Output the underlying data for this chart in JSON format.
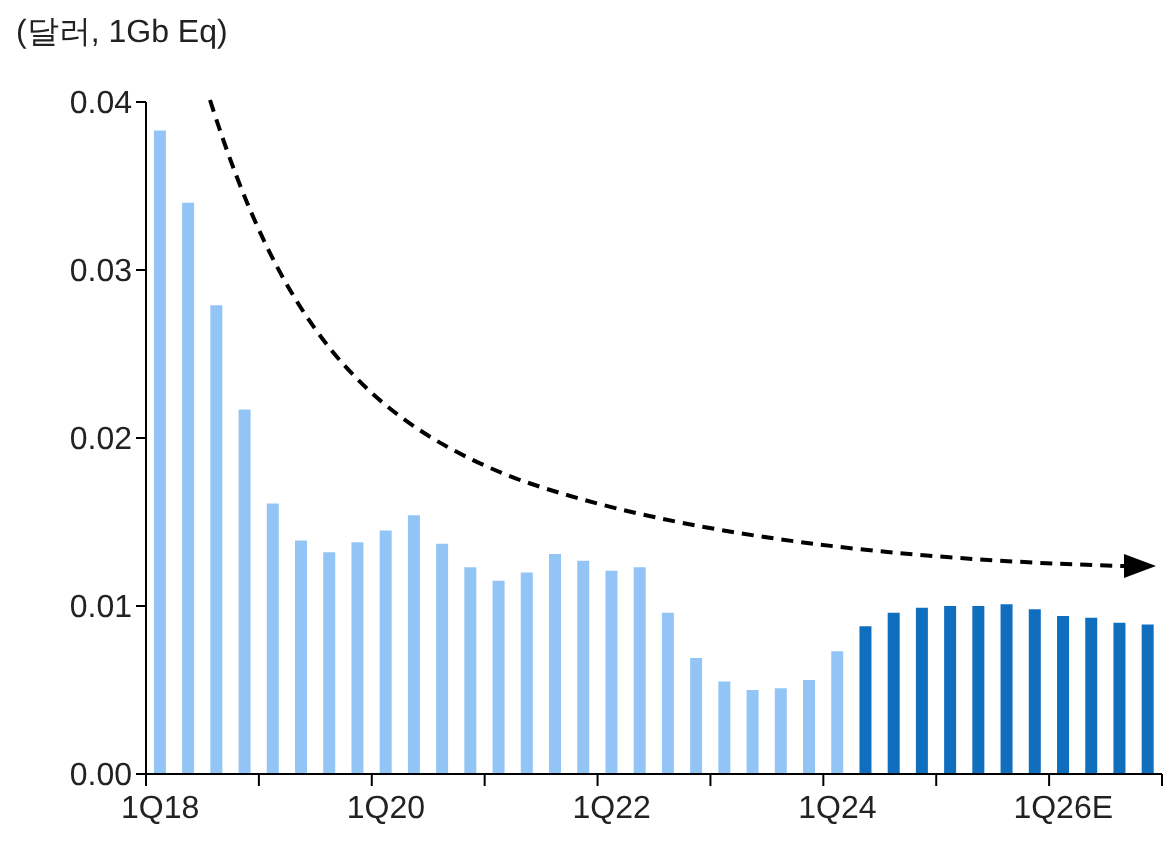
{
  "chart_data": {
    "type": "bar",
    "ylabel": "(달러, 1Gb Eq)",
    "categories": [
      "1Q18",
      null,
      null,
      null,
      null,
      null,
      null,
      null,
      "1Q20",
      null,
      null,
      null,
      null,
      null,
      null,
      null,
      "1Q22",
      null,
      null,
      null,
      null,
      null,
      null,
      null,
      "1Q24",
      null,
      null,
      null,
      null,
      null,
      null,
      null,
      "1Q26E",
      null,
      null,
      null
    ],
    "values": [
      0.0383,
      0.034,
      0.0279,
      0.0217,
      0.0161,
      0.0139,
      0.0132,
      0.0138,
      0.0145,
      0.0154,
      0.0137,
      0.0123,
      0.0115,
      0.012,
      0.0131,
      0.0127,
      0.0121,
      0.0123,
      0.0096,
      0.0069,
      0.0055,
      0.005,
      0.0051,
      0.0056,
      0.0073,
      0.0088,
      0.0096,
      0.0099,
      0.01,
      0.01,
      0.0101,
      0.0098,
      0.0094,
      0.0093,
      0.009,
      0.0089
    ],
    "colors": [
      "#92c5f5",
      "#92c5f5",
      "#92c5f5",
      "#92c5f5",
      "#92c5f5",
      "#92c5f5",
      "#92c5f5",
      "#92c5f5",
      "#92c5f5",
      "#92c5f5",
      "#92c5f5",
      "#92c5f5",
      "#92c5f5",
      "#92c5f5",
      "#92c5f5",
      "#92c5f5",
      "#92c5f5",
      "#92c5f5",
      "#92c5f5",
      "#92c5f5",
      "#92c5f5",
      "#92c5f5",
      "#92c5f5",
      "#92c5f5",
      "#92c5f5",
      "#106ebe",
      "#106ebe",
      "#106ebe",
      "#106ebe",
      "#106ebe",
      "#106ebe",
      "#106ebe",
      "#106ebe",
      "#106ebe",
      "#106ebe",
      "#106ebe"
    ],
    "ylim": [
      0,
      0.04
    ],
    "yticks": [
      {
        "value": 0,
        "label": "0.00"
      },
      {
        "value": 0.01,
        "label": "0.01"
      },
      {
        "value": 0.02,
        "label": "0.02"
      },
      {
        "value": 0.03,
        "label": "0.03"
      },
      {
        "value": 0.04,
        "label": "0.04"
      }
    ],
    "grid": false,
    "legend": false
  }
}
